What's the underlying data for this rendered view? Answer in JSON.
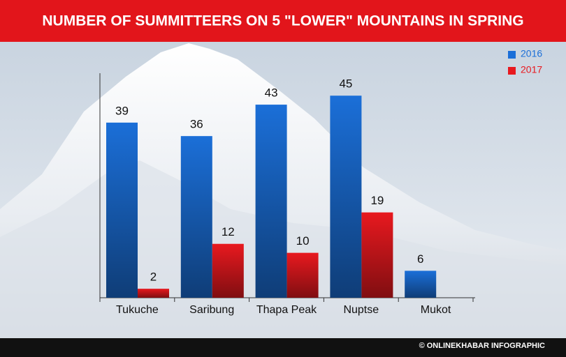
{
  "chart_data": {
    "type": "bar",
    "title": "NUMBER OF SUMMITTEERS ON 5 \"LOWER\" MOUNTAINS IN SPRING",
    "categories": [
      "Tukuche",
      "Saribung",
      "Thapa Peak",
      "Nuptse",
      "Mukot"
    ],
    "series": [
      {
        "name": "2016",
        "color": "#1b6fd8",
        "values": [
          39,
          36,
          43,
          45,
          6
        ]
      },
      {
        "name": "2017",
        "color": "#e8191f",
        "values": [
          2,
          12,
          10,
          19,
          null
        ]
      }
    ],
    "ylim": [
      0,
      50
    ],
    "legend": "top-right",
    "source": "© ONLINEKHABAR INFOGRAPHIC"
  }
}
